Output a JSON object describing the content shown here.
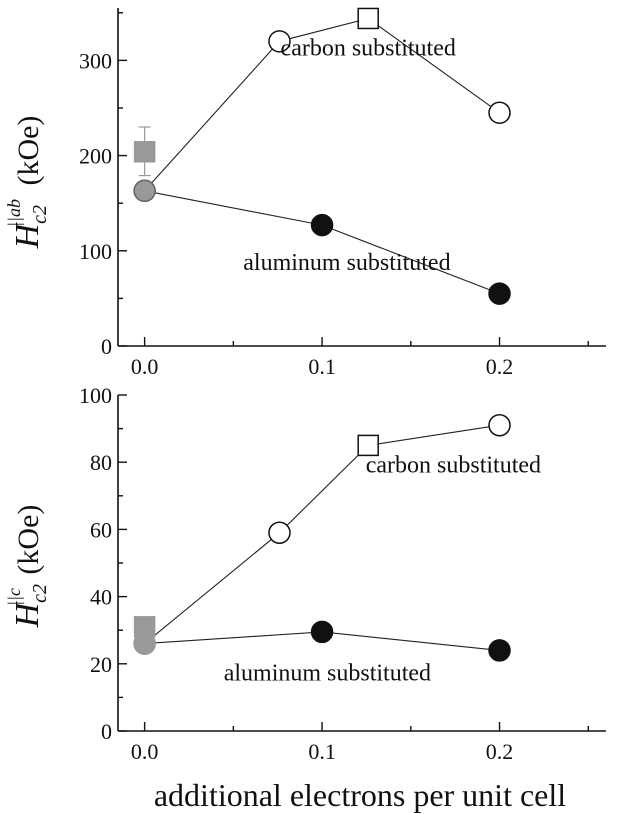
{
  "chart_data": [
    {
      "type": "line",
      "xlabel": "",
      "ylabel": {
        "symbol": "H",
        "sub": "c2",
        "sup": "||ab",
        "unit": "(kOe)"
      },
      "xlim": [
        -0.015,
        0.26
      ],
      "ylim": [
        0,
        355
      ],
      "xticks": [
        {
          "value": 0.0,
          "label": "0.0"
        },
        {
          "value": 0.1,
          "label": "0.1"
        },
        {
          "value": 0.2,
          "label": "0.2"
        }
      ],
      "yticks": [
        {
          "value": 0,
          "label": "0"
        },
        {
          "value": 100,
          "label": "100"
        },
        {
          "value": 200,
          "label": "200"
        },
        {
          "value": 300,
          "label": "300"
        }
      ],
      "series": [
        {
          "name": "carbon substituted",
          "label_pos": {
            "x": 0.126,
            "y": 305
          },
          "connect": true,
          "points": [
            {
              "x": 0.0,
              "y": 163,
              "marker": "circle",
              "fill": "#999999",
              "stroke": "#666666"
            },
            {
              "x": 0.076,
              "y": 320,
              "marker": "circle",
              "fill": "#ffffff",
              "stroke": "#111111"
            },
            {
              "x": 0.126,
              "y": 344,
              "marker": "square",
              "fill": "#ffffff",
              "stroke": "#111111"
            },
            {
              "x": 0.2,
              "y": 245,
              "marker": "circle",
              "fill": "#ffffff",
              "stroke": "#111111"
            }
          ]
        },
        {
          "name": "aluminum substituted",
          "label_pos": {
            "x": 0.114,
            "y": 80
          },
          "connect": true,
          "points": [
            {
              "x": 0.0,
              "y": 163,
              "marker": "circle",
              "fill": "#999999",
              "stroke": "#666666"
            },
            {
              "x": 0.1,
              "y": 127,
              "marker": "circle",
              "fill": "#111111",
              "stroke": "#111111"
            },
            {
              "x": 0.2,
              "y": 55,
              "marker": "circle",
              "fill": "#111111",
              "stroke": "#111111"
            }
          ]
        },
        {
          "name": "",
          "connect": false,
          "points": [
            {
              "x": 0.0,
              "y": 204,
              "marker": "square",
              "fill": "#999999",
              "stroke": "#999999",
              "err_low": 25,
              "err_high": 26
            }
          ]
        }
      ]
    },
    {
      "type": "line",
      "xlabel": "additional electrons per unit cell",
      "ylabel": {
        "symbol": "H",
        "sub": "c2",
        "sup": "||c",
        "unit": "(kOe)"
      },
      "xlim": [
        -0.015,
        0.26
      ],
      "ylim": [
        0,
        100
      ],
      "xticks": [
        {
          "value": 0.0,
          "label": "0.0"
        },
        {
          "value": 0.1,
          "label": "0.1"
        },
        {
          "value": 0.2,
          "label": "0.2"
        }
      ],
      "yticks": [
        {
          "value": 0,
          "label": "0"
        },
        {
          "value": 20,
          "label": "20"
        },
        {
          "value": 40,
          "label": "40"
        },
        {
          "value": 60,
          "label": "60"
        },
        {
          "value": 80,
          "label": "80"
        },
        {
          "value": 100,
          "label": "100"
        }
      ],
      "series": [
        {
          "name": "carbon substituted",
          "label_pos": {
            "x": 0.174,
            "y": 77
          },
          "connect": true,
          "points": [
            {
              "x": 0.0,
              "y": 26,
              "marker": "circle",
              "fill": "#999999",
              "stroke": "#999999"
            },
            {
              "x": 0.076,
              "y": 59,
              "marker": "circle",
              "fill": "#ffffff",
              "stroke": "#111111"
            },
            {
              "x": 0.126,
              "y": 85,
              "marker": "square",
              "fill": "#ffffff",
              "stroke": "#111111"
            },
            {
              "x": 0.2,
              "y": 91,
              "marker": "circle",
              "fill": "#ffffff",
              "stroke": "#111111"
            }
          ]
        },
        {
          "name": "aluminum substituted",
          "label_pos": {
            "x": 0.103,
            "y": 15
          },
          "connect": true,
          "points": [
            {
              "x": 0.0,
              "y": 26,
              "marker": "circle",
              "fill": "#999999",
              "stroke": "#999999"
            },
            {
              "x": 0.1,
              "y": 29.5,
              "marker": "circle",
              "fill": "#111111",
              "stroke": "#111111"
            },
            {
              "x": 0.2,
              "y": 24,
              "marker": "circle",
              "fill": "#111111",
              "stroke": "#111111"
            }
          ]
        },
        {
          "name": "",
          "connect": false,
          "points": [
            {
              "x": 0.0,
              "y": 31,
              "marker": "square",
              "fill": "#999999",
              "stroke": "#999999"
            }
          ]
        }
      ]
    }
  ]
}
